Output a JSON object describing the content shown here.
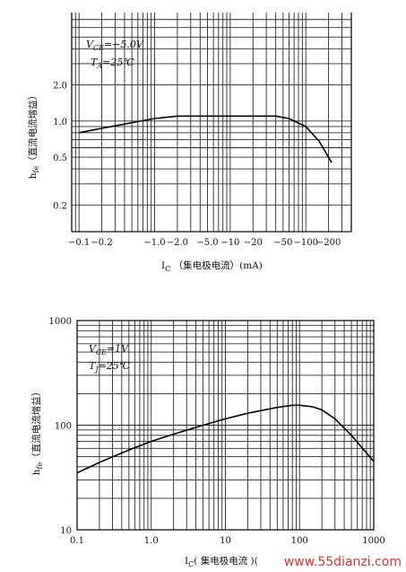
{
  "chart_data": [
    {
      "type": "line",
      "x_scale": "log",
      "y_scale": "log",
      "xlabel": "I",
      "xlabel_sub": "C",
      "xlabel_cn": "（集电极电流）(mA)",
      "ylabel": "h",
      "ylabel_sub": "fe",
      "ylabel_cn": "（直流电流增益）",
      "x_ticks": [
        "−0.1",
        "−0.2",
        "−1.0",
        "−2.0",
        "−5.0",
        "−10",
        "−20",
        "−50",
        "−100",
        "−200"
      ],
      "y_ticks": [
        "2.0",
        "1.0",
        "0.5",
        "0.2"
      ],
      "annotations": [
        "V",
        "CE",
        "=−5.0V",
        "T",
        "A",
        "=25℃"
      ],
      "x": [
        0.1,
        0.2,
        0.5,
        1.0,
        2.0,
        5.0,
        10,
        20,
        40,
        60,
        100,
        150,
        220
      ],
      "y": [
        0.8,
        0.87,
        0.97,
        1.05,
        1.1,
        1.1,
        1.1,
        1.1,
        1.1,
        1.05,
        0.9,
        0.68,
        0.45
      ],
      "grid": true
    },
    {
      "type": "line",
      "x_scale": "log",
      "y_scale": "log",
      "xlabel": "I",
      "xlabel_sub": "C",
      "xlabel_cn": "( 集电极电流 )(",
      "ylabel": "h",
      "ylabel_sub": "fe",
      "ylabel_cn": "（直流电流增益）",
      "x_ticks": [
        "0.1",
        "1.0",
        "10",
        "100",
        "1000"
      ],
      "y_ticks": [
        "1000",
        "100",
        "10"
      ],
      "annotations": [
        "V",
        "CE",
        "=1V",
        "T",
        "J",
        "=25℃"
      ],
      "x": [
        0.1,
        0.2,
        0.5,
        1,
        2,
        5,
        10,
        20,
        50,
        80,
        100,
        150,
        200,
        300,
        500,
        1000
      ],
      "y": [
        35,
        44,
        58,
        70,
        82,
        100,
        115,
        130,
        148,
        155,
        155,
        150,
        140,
        115,
        80,
        45
      ],
      "grid": true
    }
  ],
  "watermark": "www.55dianzi.com"
}
